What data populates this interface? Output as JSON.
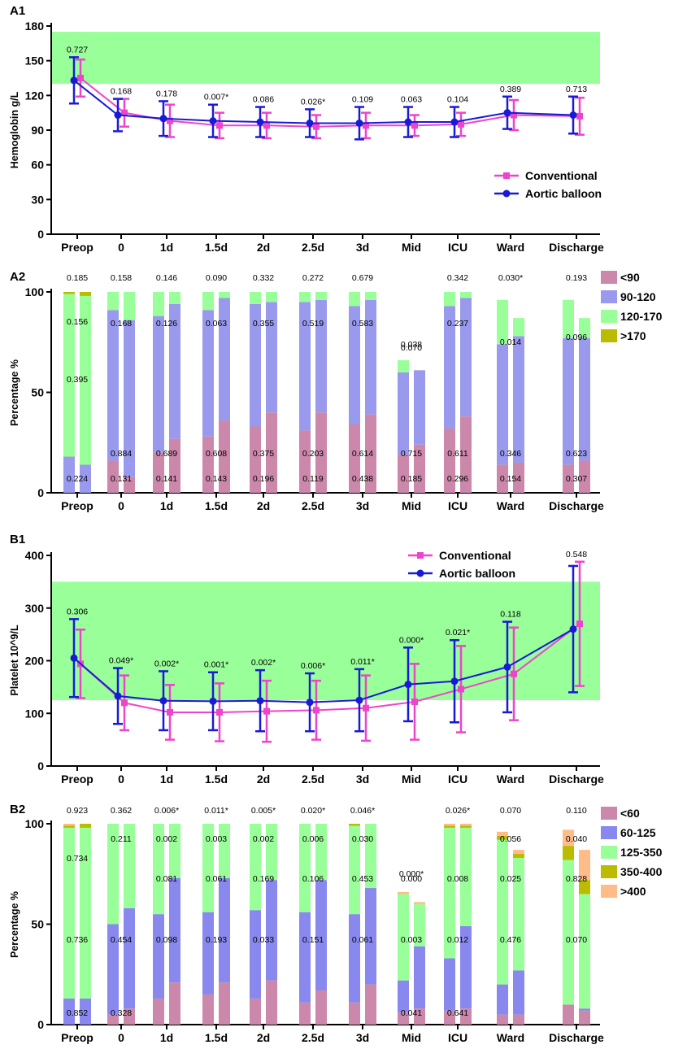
{
  "colors": {
    "conventional": "#ee44cc",
    "aortic": "#1a1ad6",
    "normal_band": "#99ff99",
    "a2": [
      "#cc88aa",
      "#9999ee",
      "#99ff99",
      "#bbbb00"
    ],
    "b2": [
      "#cc88aa",
      "#8888ee",
      "#99ff99",
      "#bbbb00",
      "#ffbb88"
    ]
  },
  "chart_data": [
    {
      "id": "A1",
      "panel_label": "A1",
      "type": "line",
      "ylabel": "Hemoglobin g/L",
      "ylim": [
        0,
        180
      ],
      "yticks": [
        0,
        30,
        60,
        90,
        120,
        150,
        180
      ],
      "normal_range": [
        130,
        175
      ],
      "categories": [
        "Preop",
        "0",
        "1d",
        "1.5d",
        "2d",
        "2.5d",
        "3d",
        "Mid",
        "ICU",
        "Ward",
        "Discharge"
      ],
      "p_values": [
        "0.727",
        "0.168",
        "0.178",
        "0.007*",
        "0.086",
        "0.026*",
        "0.109",
        "0.063",
        "0.104",
        "0.389",
        "0.713"
      ],
      "legend": [
        "Conventional",
        "Aortic balloon"
      ],
      "series": [
        {
          "name": "Conventional",
          "values": [
            135,
            105,
            98,
            94,
            94,
            93,
            94,
            94,
            95,
            103,
            102
          ],
          "err": [
            16,
            12,
            14,
            11,
            11,
            10,
            11,
            9,
            10,
            13,
            16
          ]
        },
        {
          "name": "Aortic balloon",
          "values": [
            133,
            103,
            100,
            98,
            97,
            96,
            96,
            97,
            97,
            105,
            103
          ],
          "err": [
            20,
            14,
            15,
            14,
            13,
            12,
            14,
            13,
            13,
            14,
            16
          ]
        }
      ]
    },
    {
      "id": "A2",
      "panel_label": "A2",
      "type": "bar",
      "ylabel": "Percentage %",
      "ylim": [
        0,
        100
      ],
      "yticks": [
        0,
        50,
        100
      ],
      "categories": [
        "Preop",
        "0",
        "1d",
        "1.5d",
        "2d",
        "2.5d",
        "3d",
        "Mid",
        "ICU",
        "Ward",
        "Discharge"
      ],
      "legend": [
        "<90",
        "90-120",
        "120-170",
        ">170"
      ],
      "top_p": [
        "0.185",
        "0.158",
        "0.146",
        "0.090",
        "0.332",
        "0.272",
        "0.679",
        "0.070",
        "0.342",
        "0.030*",
        "0.193"
      ],
      "level_p": [
        [
          "0.224",
          "",
          "0.395",
          "0.156"
        ],
        [
          "0.131",
          "0.884",
          "0.168",
          ""
        ],
        [
          "0.141",
          "0.689",
          "0.126",
          ""
        ],
        [
          "0.143",
          "0.608",
          "0.063",
          ""
        ],
        [
          "0.196",
          "0.375",
          "0.355",
          ""
        ],
        [
          "0.119",
          "0.203",
          "0.519",
          ""
        ],
        [
          "0.438",
          "0.614",
          "0.583",
          ""
        ],
        [
          "0.185",
          "0.715",
          "0.038",
          ""
        ],
        [
          "0.296",
          "0.611",
          "0.237",
          ""
        ],
        [
          "0.154",
          "0.346",
          "0.014",
          ""
        ],
        [
          "0.307",
          "0.623",
          "0.096",
          ""
        ]
      ],
      "series": [
        {
          "name": "Conventional",
          "stacks": [
            [
              0,
              18,
              81,
              1
            ],
            [
              16,
              75,
              9,
              0
            ],
            [
              20,
              68,
              12,
              0
            ],
            [
              28,
              63,
              9,
              0
            ],
            [
              33,
              61,
              6,
              0
            ],
            [
              31,
              64,
              5,
              0
            ],
            [
              34,
              59,
              7,
              0
            ],
            [
              19,
              41,
              6,
              0
            ],
            [
              32,
              61,
              7,
              0
            ],
            [
              14,
              60,
              22,
              0
            ],
            [
              14,
              63,
              19,
              0
            ]
          ]
        },
        {
          "name": "Aortic balloon",
          "stacks": [
            [
              0,
              14,
              84,
              2
            ],
            [
              8,
              78,
              14,
              0
            ],
            [
              27,
              67,
              6,
              0
            ],
            [
              36,
              61,
              3,
              0
            ],
            [
              40,
              55,
              5,
              0
            ],
            [
              40,
              56,
              4,
              0
            ],
            [
              39,
              57,
              4,
              0
            ],
            [
              24,
              37,
              0,
              0
            ],
            [
              38,
              59,
              3,
              0
            ],
            [
              15,
              63,
              9,
              0
            ],
            [
              16,
              61,
              10,
              0
            ]
          ]
        }
      ]
    },
    {
      "id": "B1",
      "panel_label": "B1",
      "type": "line",
      "ylabel": "Platelet 10^9/L",
      "ylim": [
        0,
        400
      ],
      "yticks": [
        0,
        100,
        200,
        300,
        400
      ],
      "normal_range": [
        125,
        350
      ],
      "categories": [
        "Preop",
        "0",
        "1d",
        "1.5d",
        "2d",
        "2.5d",
        "3d",
        "Mid",
        "ICU",
        "Ward",
        "Discharge"
      ],
      "p_values": [
        "0.306",
        "0.049*",
        "0.002*",
        "0.001*",
        "0.002*",
        "0.006*",
        "0.011*",
        "0.000*",
        "0.021*",
        "0.118",
        "0.548"
      ],
      "legend": [
        "Conventional",
        "Aortic balloon"
      ],
      "series": [
        {
          "name": "Conventional",
          "values": [
            194,
            120,
            102,
            102,
            104,
            106,
            110,
            122,
            146,
            175,
            270
          ],
          "err": [
            65,
            52,
            52,
            55,
            58,
            56,
            62,
            72,
            82,
            88,
            118
          ]
        },
        {
          "name": "Aortic balloon",
          "values": [
            205,
            133,
            124,
            123,
            124,
            121,
            125,
            155,
            161,
            188,
            260
          ],
          "err": [
            74,
            53,
            56,
            55,
            58,
            55,
            59,
            70,
            78,
            86,
            120
          ]
        }
      ]
    },
    {
      "id": "B2",
      "panel_label": "B2",
      "type": "bar",
      "ylabel": "Percentage %",
      "ylim": [
        0,
        100
      ],
      "yticks": [
        0,
        50,
        100
      ],
      "categories": [
        "Preop",
        "0",
        "1d",
        "1.5d",
        "2d",
        "2.5d",
        "3d",
        "Mid",
        "ICU",
        "Ward",
        "Discharge"
      ],
      "legend": [
        "<60",
        "60-125",
        "125-350",
        "350-400",
        ">400"
      ],
      "top_p": [
        "0.923",
        "0.362",
        "0.006*",
        "0.011*",
        "0.005*",
        "0.020*",
        "0.046*",
        "0.000*",
        "0.026*",
        "0.070",
        "0.110"
      ],
      "level_p": [
        [
          "",
          "0.852",
          "0.736",
          "0.734"
        ],
        [
          "0.328",
          "0.454",
          "0.211",
          ""
        ],
        [
          "",
          "0.098",
          "0.081",
          "0.002"
        ],
        [
          "",
          "0.193",
          "0.061",
          "0.003"
        ],
        [
          "",
          "0.033",
          "0.169",
          "0.002"
        ],
        [
          "",
          "0.151",
          "0.106",
          "0.006"
        ],
        [
          "",
          "0.061",
          "0.453",
          "0.030"
        ],
        [
          "0.041",
          "0.003",
          "0.000",
          ""
        ],
        [
          "0.641",
          "0.012",
          "0.008",
          ""
        ],
        [
          "",
          "0.476",
          "0.025",
          "0.056"
        ],
        [
          "",
          "0.070",
          "0.828",
          "0.040"
        ]
      ],
      "series": [
        {
          "name": "Conventional",
          "stacks": [
            [
              0,
              13,
              85,
              1,
              1
            ],
            [
              5,
              45,
              50,
              0,
              0
            ],
            [
              13,
              42,
              45,
              0,
              0
            ],
            [
              15,
              41,
              44,
              0,
              0
            ],
            [
              13,
              44,
              43,
              0,
              0
            ],
            [
              11,
              45,
              44,
              0,
              0
            ],
            [
              11,
              44,
              44,
              1,
              0
            ],
            [
              6,
              16,
              43,
              0,
              1
            ],
            [
              7,
              26,
              65,
              1,
              1
            ],
            [
              5,
              15,
              72,
              2,
              2
            ],
            [
              10,
              0,
              72,
              7,
              8
            ]
          ]
        },
        {
          "name": "Aortic balloon",
          "stacks": [
            [
              0,
              13,
              85,
              2,
              0
            ],
            [
              8,
              50,
              42,
              0,
              0
            ],
            [
              21,
              52,
              27,
              0,
              0
            ],
            [
              21,
              52,
              27,
              0,
              0
            ],
            [
              22,
              50,
              28,
              0,
              0
            ],
            [
              17,
              55,
              28,
              0,
              0
            ],
            [
              20,
              48,
              32,
              0,
              0
            ],
            [
              8,
              31,
              21,
              0,
              1
            ],
            [
              8,
              41,
              49,
              1,
              1
            ],
            [
              5,
              22,
              56,
              2,
              2
            ],
            [
              7,
              1,
              57,
              7,
              15
            ]
          ]
        }
      ]
    }
  ]
}
